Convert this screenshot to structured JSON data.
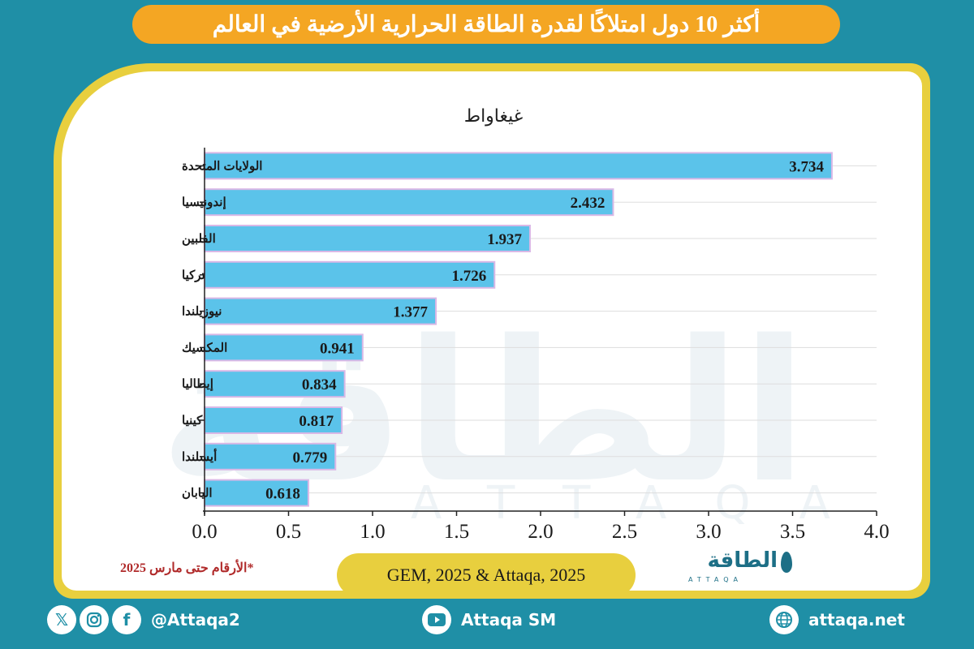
{
  "title": "أكثر 10 دول امتلاكًا لقدرة الطاقة الحرارية الأرضية في العالم",
  "footnote": "*الأرقام حتى مارس 2025",
  "source": "GEM, 2025 & Attaqa, 2025",
  "logo": {
    "text": "الطاقة",
    "sub": "ATTAQA"
  },
  "watermark": {
    "text": "الطاقة",
    "sub": "ATTAQA"
  },
  "footer": {
    "social_handle": "@Attaqa2",
    "youtube": "Attaqa SM",
    "website": "attaqa.net",
    "icons": [
      "x-icon",
      "instagram-icon",
      "facebook-icon",
      "youtube-icon",
      "globe-icon"
    ]
  },
  "colors": {
    "background": "#1f8fa6",
    "title_bar": "#f4a623",
    "frame": "#e8cf3e",
    "bar": "#5bc3ea",
    "bar_border": "#d9b8e6",
    "footnote": "#b02a2a"
  },
  "chart_data": {
    "type": "bar",
    "orientation": "horizontal",
    "title": "",
    "unit_label": "غيغاواط",
    "categories": [
      "الولايات المتحدة",
      "إندونيسيا",
      "الفلبين",
      "تركيا",
      "نيوزيلندا",
      "المكسيك",
      "إيطاليا",
      "كينيا",
      "أيسلندا",
      "اليابان"
    ],
    "values": [
      3.734,
      2.432,
      1.937,
      1.726,
      1.377,
      0.941,
      0.834,
      0.817,
      0.779,
      0.618
    ],
    "value_labels": [
      "3.734",
      "2.432",
      "1.937",
      "1.726",
      "1.377",
      "0.941",
      "0.834",
      "0.817",
      "0.779",
      "0.618"
    ],
    "xlim": [
      0,
      4.0
    ],
    "xticks": [
      "0.0",
      "0.5",
      "1.0",
      "1.5",
      "2.0",
      "2.5",
      "3.0",
      "3.5",
      "4.0"
    ],
    "grid": true
  }
}
